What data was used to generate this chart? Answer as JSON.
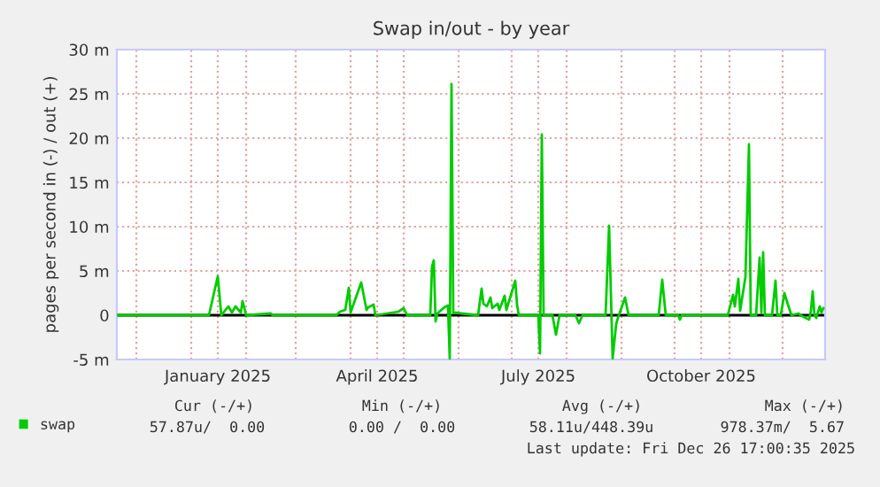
{
  "chart_data": {
    "type": "line",
    "title": "Swap in/out - by year",
    "ylabel": "pages per second in (-) / out (+)",
    "x": [
      "2024-11-20",
      "2025-01-11",
      "2025-01-16",
      "2025-01-18",
      "2025-01-22",
      "2025-01-24",
      "2025-01-26",
      "2025-01-29",
      "2025-01-30",
      "2025-02-01",
      "2025-02-15",
      "2025-02-16",
      "2025-03-24",
      "2025-03-26",
      "2025-03-29",
      "2025-03-31",
      "2025-04-01",
      "2025-04-07",
      "2025-04-10",
      "2025-04-11",
      "2025-04-14",
      "2025-04-15",
      "2025-04-28",
      "2025-05-01",
      "2025-05-03",
      "2025-05-16",
      "2025-05-17",
      "2025-05-18",
      "2025-05-19",
      "2025-05-20",
      "2025-05-24",
      "2025-05-26",
      "2025-05-27",
      "2025-05-28",
      "2025-05-29",
      "2025-06-12",
      "2025-06-14",
      "2025-06-15",
      "2025-06-17",
      "2025-06-19",
      "2025-06-20",
      "2025-06-23",
      "2025-06-24",
      "2025-06-27",
      "2025-06-28",
      "2025-07-03",
      "2025-07-04",
      "2025-07-05",
      "2025-07-07",
      "2025-07-16",
      "2025-07-17",
      "2025-07-18",
      "2025-07-19",
      "2025-07-24",
      "2025-07-26",
      "2025-07-28",
      "2025-08-06",
      "2025-08-08",
      "2025-08-10",
      "2025-08-23",
      "2025-08-25",
      "2025-08-27",
      "2025-08-29",
      "2025-08-30",
      "2025-09-03",
      "2025-09-05",
      "2025-09-22",
      "2025-09-24",
      "2025-09-26",
      "2025-10-03",
      "2025-10-04",
      "2025-10-05",
      "2025-10-31",
      "2025-11-03",
      "2025-11-04",
      "2025-11-06",
      "2025-11-07",
      "2025-11-10",
      "2025-11-12",
      "2025-11-13",
      "2025-11-16",
      "2025-11-18",
      "2025-11-19",
      "2025-11-20",
      "2025-11-21",
      "2025-11-25",
      "2025-11-27",
      "2025-11-28",
      "2025-11-30",
      "2025-12-02",
      "2025-12-04",
      "2025-12-06",
      "2025-12-10",
      "2025-12-11",
      "2025-12-16",
      "2025-12-17",
      "2025-12-18",
      "2025-12-19",
      "2025-12-20",
      "2025-12-22",
      "2025-12-23",
      "2025-12-24"
    ],
    "series": [
      {
        "name": "swap",
        "color": "#00cc00",
        "values": [
          0,
          0,
          4.4,
          0,
          1.0,
          0.3,
          1.0,
          0.3,
          1.6,
          0,
          0.2,
          0,
          0,
          0.4,
          0.6,
          3.1,
          0.3,
          3.7,
          0.6,
          0.9,
          1.2,
          0,
          0.4,
          0.8,
          0,
          0,
          5.5,
          6.2,
          -0.7,
          0.2,
          0.9,
          1.1,
          -4.9,
          26.1,
          0.3,
          0,
          3.0,
          1.3,
          1.0,
          2.0,
          0.8,
          1.3,
          0.6,
          2.2,
          0.6,
          3.9,
          1.2,
          0,
          0,
          0,
          -4.3,
          20.4,
          0,
          0,
          -2.2,
          0,
          0,
          -0.9,
          0,
          0,
          10.1,
          -4.9,
          -1.0,
          -0.3,
          2.0,
          0,
          0,
          4.0,
          0,
          0,
          -0.5,
          0,
          0,
          2.3,
          1.0,
          4.1,
          0.5,
          4.3,
          19.3,
          0,
          0,
          6.5,
          0.3,
          7.1,
          0,
          0,
          3.9,
          0,
          0,
          2.5,
          1.2,
          0,
          0.2,
          0,
          -0.5,
          0.5,
          2.7,
          0,
          -0.3,
          1.0,
          0.3,
          0.8
        ]
      }
    ],
    "xlim": [
      "2024-11-20",
      "2025-12-25"
    ],
    "xticks": [
      {
        "value": "2024-12-01",
        "label": null
      },
      {
        "value": "2025-01-01",
        "label": null
      },
      {
        "value": "2025-01-16",
        "label": "January 2025"
      },
      {
        "value": "2025-02-01",
        "label": null
      },
      {
        "value": "2025-03-01",
        "label": null
      },
      {
        "value": "2025-04-01",
        "label": null
      },
      {
        "value": "2025-04-16",
        "label": "April 2025"
      },
      {
        "value": "2025-05-01",
        "label": null
      },
      {
        "value": "2025-06-01",
        "label": null
      },
      {
        "value": "2025-07-01",
        "label": null
      },
      {
        "value": "2025-07-16",
        "label": "July 2025"
      },
      {
        "value": "2025-08-01",
        "label": null
      },
      {
        "value": "2025-09-01",
        "label": null
      },
      {
        "value": "2025-10-01",
        "label": null
      },
      {
        "value": "2025-10-16",
        "label": "October 2025"
      },
      {
        "value": "2025-11-01",
        "label": null
      },
      {
        "value": "2025-12-01",
        "label": null
      }
    ],
    "ylim": [
      -5,
      30
    ],
    "yticks": [
      {
        "value": -5,
        "label": "-5 m"
      },
      0,
      {
        "value": 5,
        "label": "5 m"
      },
      {
        "value": 10,
        "label": "10 m"
      },
      {
        "value": 15,
        "label": "15 m"
      },
      {
        "value": 20,
        "label": "20 m"
      },
      {
        "value": 25,
        "label": "25 m"
      },
      {
        "value": 30,
        "label": "30 m"
      }
    ],
    "ref_lines": [
      {
        "axis": "y",
        "value": 0,
        "color": "#000000"
      }
    ],
    "grid": true,
    "legend": "bottom left",
    "marker": "none",
    "line_style": "solid",
    "annotations": [
      "Cur (-/+)",
      "Min (-/+)",
      "Avg (-/+)",
      "Max (-/+)",
      "57.87u/  0.00",
      "0.00 /  0.00",
      "58.11u/448.39u",
      "978.37m/  5.67",
      "Last update: Fri Dec 26 17:00:35 2025"
    ]
  }
}
